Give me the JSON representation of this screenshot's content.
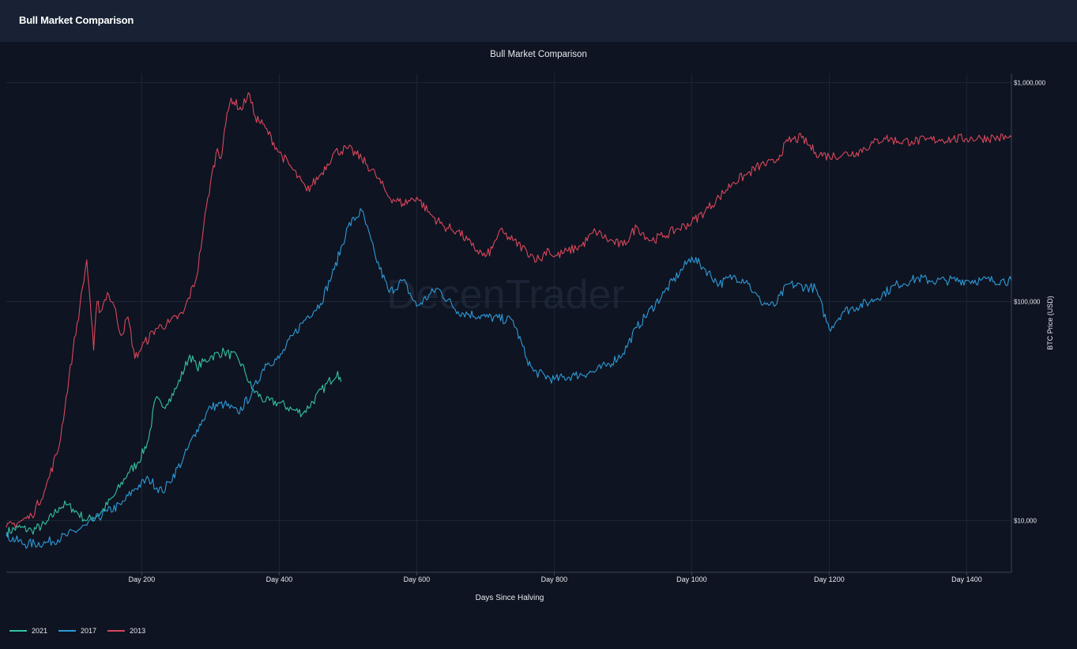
{
  "header": {
    "title": "Bull Market Comparison"
  },
  "watermark": {
    "text": "DecenTrader"
  },
  "chart_data": {
    "type": "line",
    "title": "Bull Market Comparison",
    "xlabel": "Days Since Halving",
    "ylabel": "BTC Price (USD)",
    "xlim": [
      3,
      1465
    ],
    "ylim": [
      5800,
      1100000
    ],
    "yscale": "log",
    "grid": true,
    "legend_position": "bottom-left",
    "x_ticks": [
      {
        "value": 200,
        "label": "Day 200"
      },
      {
        "value": 400,
        "label": "Day 400"
      },
      {
        "value": 600,
        "label": "Day 600"
      },
      {
        "value": 800,
        "label": "Day 800"
      },
      {
        "value": 1000,
        "label": "Day 1000"
      },
      {
        "value": 1200,
        "label": "Day 1200"
      },
      {
        "value": 1400,
        "label": "Day 1400"
      }
    ],
    "y_ticks": [
      {
        "value": 10000,
        "label": "$10,000"
      },
      {
        "value": 100000,
        "label": "$100,000"
      },
      {
        "value": 1000000,
        "label": "$1,000,000"
      }
    ],
    "series": [
      {
        "name": "2021",
        "color": "#34c3a0",
        "x": [
          3,
          20,
          40,
          60,
          80,
          90,
          100,
          120,
          140,
          160,
          180,
          195,
          210,
          220,
          230,
          240,
          250,
          270,
          280,
          300,
          320,
          340,
          350,
          360,
          380,
          400,
          420,
          435,
          485,
          490
        ],
        "y": [
          8800,
          9300,
          9000,
          9600,
          11500,
          11800,
          11300,
          10000,
          10800,
          13000,
          16500,
          18500,
          23500,
          36000,
          33000,
          36000,
          40000,
          57000,
          50000,
          56000,
          59000,
          55000,
          48000,
          40000,
          35000,
          34500,
          32000,
          31000,
          48000,
          43000
        ]
      },
      {
        "name": "2017",
        "color": "#2e9ad8",
        "x": [
          3,
          30,
          60,
          90,
          120,
          150,
          170,
          190,
          210,
          230,
          240,
          260,
          280,
          300,
          320,
          340,
          360,
          380,
          400,
          420,
          440,
          460,
          480,
          500,
          520,
          540,
          560,
          580,
          600,
          630,
          660,
          700,
          740,
          760,
          770,
          800,
          830,
          860,
          880,
          900,
          920,
          960,
          1000,
          1020,
          1040,
          1060,
          1080,
          1090,
          1100,
          1120,
          1140,
          1180,
          1200,
          1220,
          1260,
          1300,
          1320,
          1330,
          1345,
          1350,
          1370,
          1400,
          1420,
          1450,
          1465
        ],
        "y": [
          8500,
          7800,
          7900,
          8500,
          9500,
          11000,
          11800,
          14000,
          15500,
          13500,
          15000,
          19000,
          26000,
          33000,
          34000,
          31000,
          38000,
          52000,
          55000,
          70000,
          85000,
          98000,
          140000,
          220000,
          260000,
          160000,
          110000,
          125000,
          95000,
          115000,
          90000,
          85000,
          82000,
          55000,
          48000,
          44000,
          46000,
          48000,
          52000,
          58000,
          76000,
          110000,
          160000,
          140000,
          120000,
          130000,
          125000,
          110000,
          100000,
          95000,
          120000,
          115000,
          75000,
          90000,
          100000,
          120000,
          125000,
          128000,
          125000,
          124000,
          125000,
          125000,
          125000,
          125000,
          124000
        ]
      },
      {
        "name": "2013",
        "color": "#d9475c",
        "x": [
          3,
          20,
          40,
          60,
          80,
          100,
          110,
          120,
          125,
          130,
          135,
          140,
          150,
          160,
          170,
          180,
          190,
          200,
          220,
          240,
          260,
          280,
          290,
          300,
          310,
          315,
          320,
          330,
          345,
          355,
          365,
          380,
          400,
          420,
          440,
          460,
          480,
          500,
          520,
          540,
          560,
          580,
          600,
          620,
          640,
          660,
          680,
          700,
          710,
          720,
          740,
          760,
          770,
          780,
          790,
          800,
          820,
          840,
          860,
          880,
          900,
          920,
          940,
          960,
          980,
          1000,
          1020,
          1040,
          1060,
          1080,
          1100,
          1120,
          1140,
          1160,
          1180,
          1200,
          1220,
          1240,
          1260,
          1280,
          1300,
          1320,
          1340,
          1360,
          1380,
          1400,
          1420,
          1440,
          1460,
          1465
        ],
        "y": [
          9300,
          9800,
          10500,
          14000,
          22000,
          60000,
          95000,
          155000,
          100000,
          60000,
          100000,
          90000,
          110000,
          95000,
          70000,
          85000,
          55000,
          62000,
          75000,
          80000,
          88000,
          130000,
          220000,
          350000,
          500000,
          450000,
          600000,
          850000,
          750000,
          900000,
          700000,
          620000,
          480000,
          400000,
          320000,
          380000,
          480000,
          500000,
          450000,
          380000,
          300000,
          280000,
          300000,
          250000,
          220000,
          210000,
          180000,
          160000,
          175000,
          210000,
          190000,
          170000,
          160000,
          155000,
          175000,
          160000,
          170000,
          180000,
          210000,
          190000,
          180000,
          220000,
          190000,
          200000,
          215000,
          230000,
          260000,
          300000,
          350000,
          380000,
          420000,
          430000,
          540000,
          560000,
          480000,
          460000,
          470000,
          480000,
          520000,
          560000,
          540000,
          540000,
          545000,
          550000,
          552000,
          555000,
          558000,
          560000,
          560000,
          560000
        ]
      }
    ]
  }
}
